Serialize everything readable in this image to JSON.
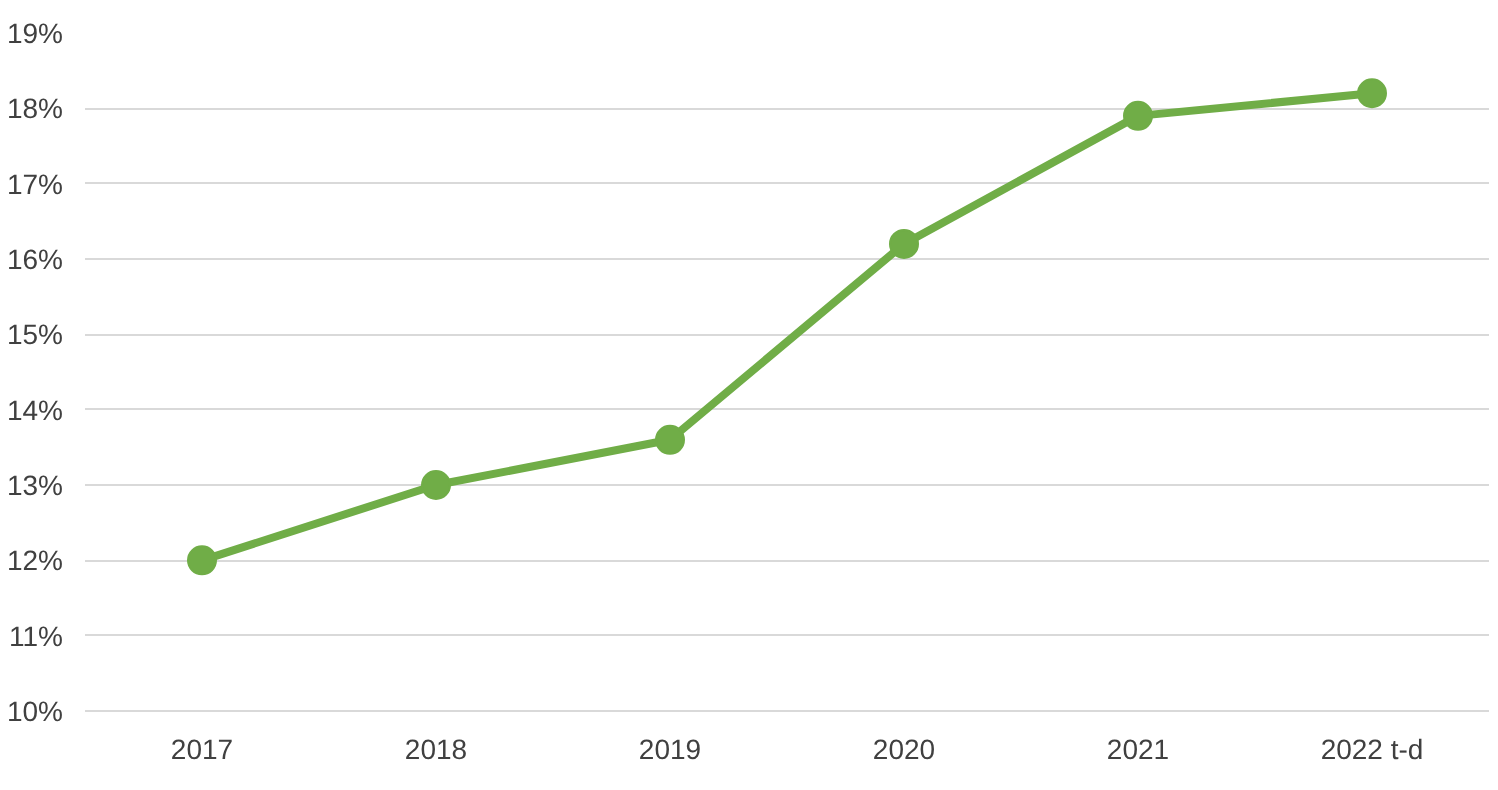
{
  "chart_data": {
    "type": "line",
    "categories": [
      "2017",
      "2018",
      "2019",
      "2020",
      "2021",
      "2022 t-d"
    ],
    "series": [
      {
        "color": "#70ad47",
        "values": [
          12.0,
          13.0,
          13.6,
          16.2,
          17.9,
          18.2
        ]
      }
    ],
    "ylim": [
      10,
      19
    ],
    "yticks": [
      {
        "value": 10,
        "label": "10%"
      },
      {
        "value": 11,
        "label": "11%"
      },
      {
        "value": 12,
        "label": "12%"
      },
      {
        "value": 13,
        "label": "13%"
      },
      {
        "value": 14,
        "label": "14%"
      },
      {
        "value": 15,
        "label": "15%"
      },
      {
        "value": 16,
        "label": "16%"
      },
      {
        "value": 17,
        "label": "17%"
      },
      {
        "value": 18,
        "label": "18%"
      },
      {
        "value": 19,
        "label": "19%"
      }
    ],
    "grid": "y",
    "marker": "circle",
    "line_style": "solid"
  }
}
